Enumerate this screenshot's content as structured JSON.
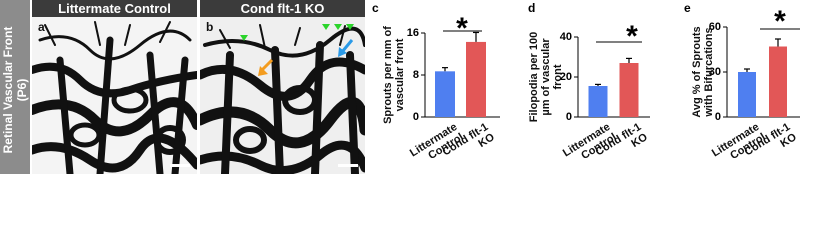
{
  "side_label": "Retinal Vascular Front (P6)",
  "images": [
    {
      "panel_label": "a",
      "title": "Littermate Control"
    },
    {
      "panel_label": "b",
      "title": "Cond flt-1 KO"
    }
  ],
  "chart_data": [
    {
      "type": "bar",
      "panel_label": "c",
      "y_label": "Sprouts per mm of vascular front",
      "annotation": "*",
      "categories": [
        "Littermate Control",
        "Cond flt-1 KO"
      ],
      "values": [
        8.7,
        14.3
      ],
      "errors": [
        0.7,
        1.8
      ],
      "colors": [
        "#4f7ff0",
        "#e25757"
      ],
      "ylim": [
        0,
        16
      ],
      "yticks": [
        0,
        8,
        16
      ]
    },
    {
      "type": "bar",
      "panel_label": "d",
      "y_label": "Filopodia per 100 µm of vascular front",
      "annotation": "*",
      "categories": [
        "Littermate Control",
        "Cond flt-1 KO"
      ],
      "values": [
        15.5,
        27
      ],
      "errors": [
        0.8,
        2.3
      ],
      "colors": [
        "#4f7ff0",
        "#e25757"
      ],
      "ylim": [
        0,
        40
      ],
      "yticks": [
        0,
        20,
        40
      ]
    },
    {
      "type": "bar",
      "panel_label": "e",
      "y_label": "Avg % of Sprouts with Bifurcations",
      "annotation": "*",
      "categories": [
        "Littermate Control",
        "Cond flt-1 KO"
      ],
      "values": [
        30,
        47
      ],
      "errors": [
        2,
        5
      ],
      "colors": [
        "#4f7ff0",
        "#e25757"
      ],
      "ylim": [
        0,
        60
      ],
      "yticks": [
        0,
        30,
        60
      ]
    }
  ]
}
